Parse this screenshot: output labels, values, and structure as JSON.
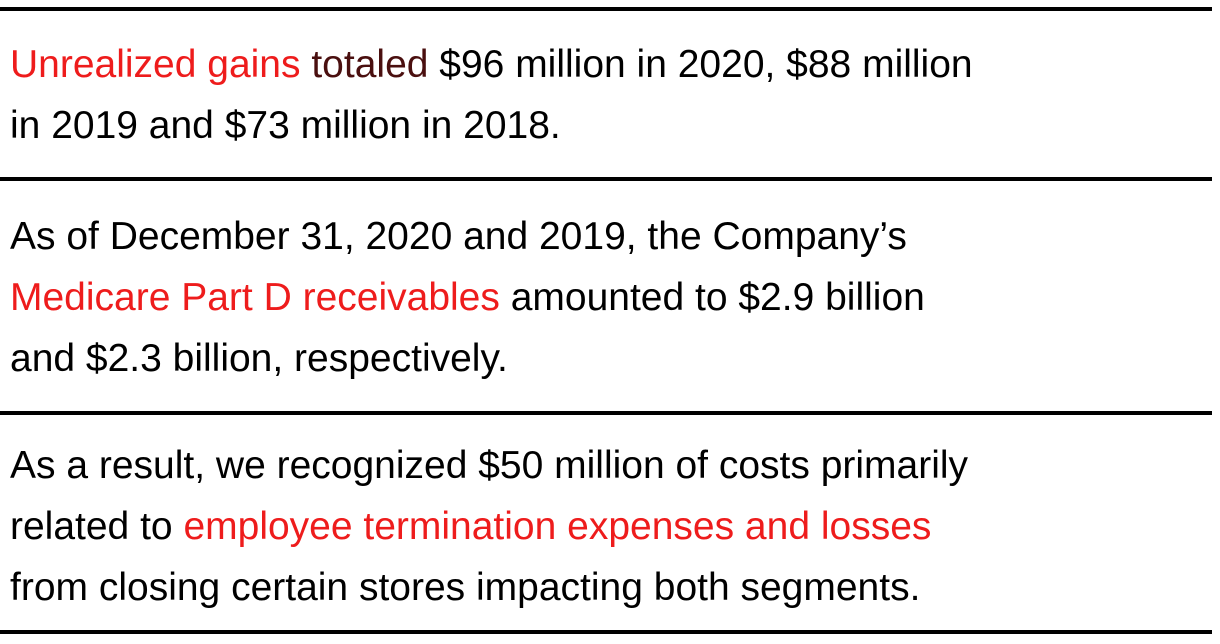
{
  "colors": {
    "highlight": "#ee1c1c",
    "secondary_highlight": "#4a0f0f",
    "text": "#000000",
    "rule": "#000000"
  },
  "passages": [
    {
      "lines": [
        {
          "highlight": "Unrealized gains",
          "secondary": " totaled",
          "text": " $96 million in 2020, $88 million"
        },
        {
          "text": "in 2019 and $73 million in 2018."
        }
      ]
    },
    {
      "lines": [
        {
          "text": "As of December 31, 2020 and 2019, the Company’s"
        },
        {
          "highlight": "Medicare Part D receivables",
          "text": " amounted to $2.9 billion"
        },
        {
          "text": "and $2.3 billion, respectively."
        }
      ]
    },
    {
      "lines": [
        {
          "text": "As a result, we recognized $50 million of costs primarily"
        },
        {
          "before": "related to ",
          "highlight": "employee termination expenses and losses"
        },
        {
          "text": "from closing certain stores impacting both segments."
        }
      ]
    }
  ]
}
